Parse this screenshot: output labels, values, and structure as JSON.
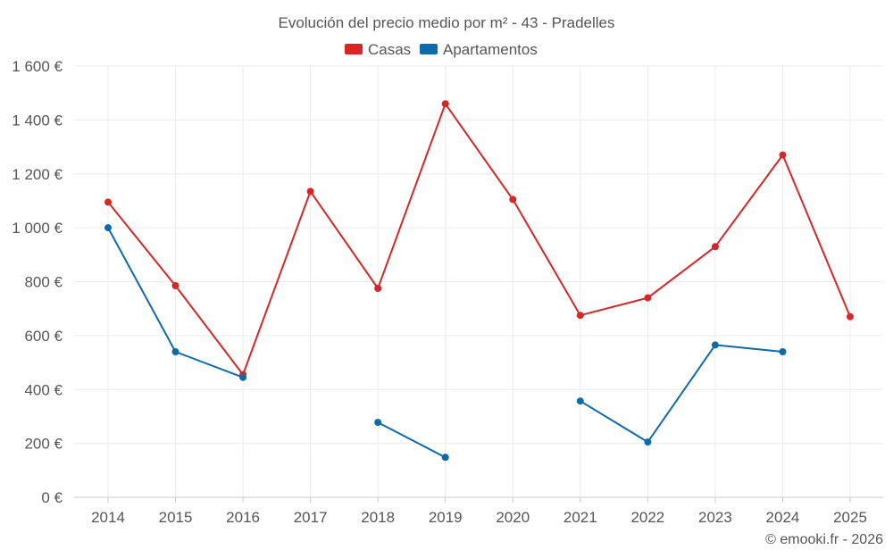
{
  "chart_data": {
    "type": "line",
    "title": "Evolución del precio medio por m² - 43 - Pradelles",
    "x": [
      "2014",
      "2015",
      "2016",
      "2017",
      "2018",
      "2019",
      "2020",
      "2021",
      "2022",
      "2023",
      "2024",
      "2025"
    ],
    "ylim": [
      0,
      1600
    ],
    "yticks": [
      0,
      200,
      400,
      600,
      800,
      1000,
      1200,
      1400,
      1600
    ],
    "ytick_labels": [
      "0 €",
      "200 €",
      "400 €",
      "600 €",
      "800 €",
      "1 000 €",
      "1 200 €",
      "1 400 €",
      "1 600 €"
    ],
    "grid": true,
    "legend_position": "top-center",
    "series": [
      {
        "name": "Casas",
        "color": "#d62728",
        "values": [
          1095,
          785,
          455,
          1135,
          775,
          1460,
          1105,
          675,
          740,
          930,
          1270,
          670
        ]
      },
      {
        "name": "Apartamentos",
        "color": "#0e6ba8",
        "values": [
          1000,
          540,
          445,
          null,
          278,
          148,
          null,
          357,
          205,
          565,
          540,
          null
        ]
      }
    ],
    "credit": "© emooki.fr - 2026"
  }
}
